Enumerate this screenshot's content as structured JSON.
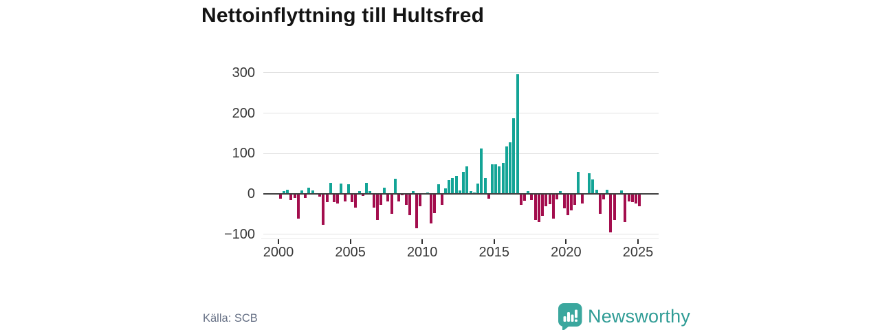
{
  "title": "Nettoinflyttning till Hultsfred",
  "source": "Källa: SCB",
  "branding": {
    "name": "Newsworthy",
    "logo_icon": "speech-bubble-bar-chart"
  },
  "colors": {
    "positive_bar": "#13a496",
    "negative_bar": "#a30d4d",
    "title_text": "#141414",
    "axis_text": "#373737",
    "gridline": "#e1e1e1",
    "zero_line": "#3f3f3f",
    "source_text": "#667085",
    "brand_bubble": "#3ba79e",
    "brand_text": "#2f9c95",
    "logo_glyph": "#ffffff"
  },
  "chart_data": {
    "type": "bar",
    "title": "Nettoinflyttning till Hultsfred",
    "xlabel": "",
    "ylabel": "",
    "frequency": "quarterly",
    "x_start": "2000 Q1",
    "x_end": "2025 Q1",
    "grid": "horizontal",
    "legend": "none",
    "ylim": [
      -110,
      310
    ],
    "y_ticks": [
      300,
      200,
      100,
      0,
      -100
    ],
    "y_tick_labels": [
      "300",
      "200",
      "100",
      "0",
      "−100"
    ],
    "x_tick_years": [
      2000,
      2005,
      2010,
      2015,
      2020,
      2025
    ],
    "x_tick_labels": [
      "2000",
      "2005",
      "2010",
      "2015",
      "2020",
      "2025"
    ],
    "series": [
      {
        "name": "Nettoinflyttning",
        "values": [
          -12,
          7,
          10,
          -15,
          -10,
          -62,
          8,
          -11,
          16,
          8,
          -2,
          -6,
          -77,
          -21,
          27,
          -20,
          -23,
          25,
          -18,
          23,
          -20,
          -34,
          7,
          -5,
          27,
          6,
          -34,
          -65,
          -27,
          16,
          -18,
          -49,
          38,
          -18,
          -3,
          -27,
          -52,
          6,
          -85,
          -31,
          -2,
          4,
          -73,
          -48,
          24,
          -28,
          14,
          34,
          39,
          45,
          8,
          55,
          68,
          6,
          3,
          25,
          113,
          39,
          -12,
          74,
          74,
          68,
          76,
          117,
          127,
          188,
          297,
          -28,
          -17,
          6,
          -15,
          -64,
          -69,
          -55,
          -31,
          -26,
          -62,
          -13,
          7,
          -36,
          -53,
          -41,
          -27,
          55,
          -24,
          -2,
          51,
          35,
          10,
          -50,
          -13,
          10,
          -95,
          -64,
          -2,
          8,
          -70,
          -19,
          -21,
          -24,
          -30
        ]
      }
    ]
  }
}
